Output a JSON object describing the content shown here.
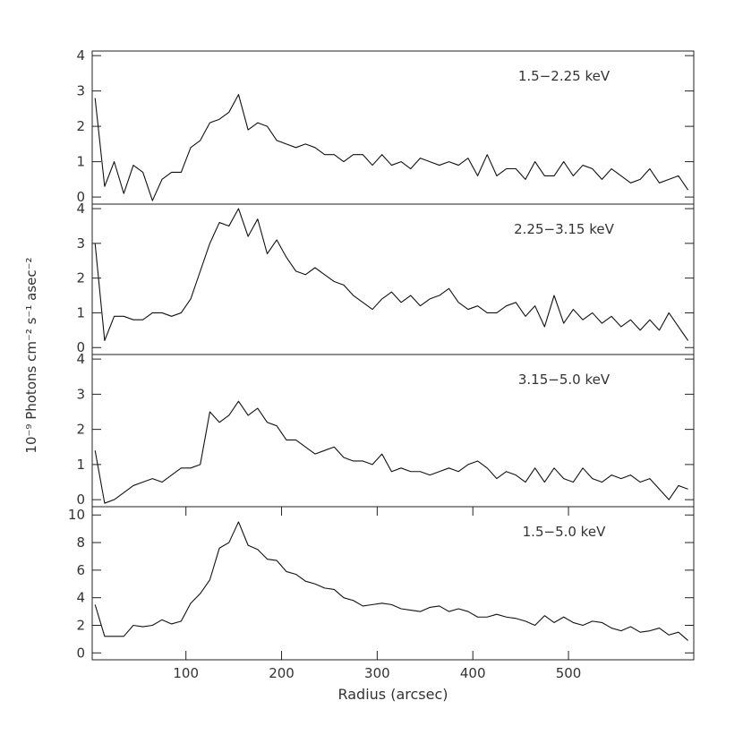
{
  "ylabel": "10⁻⁹ Photons cm⁻² s⁻¹ asec⁻²",
  "chart_data": [
    {
      "type": "line",
      "label": "1.5−2.25 keV",
      "xlim": [
        2,
        631
      ],
      "ylim": [
        -0.2,
        4.13
      ],
      "yticks": [
        0,
        1,
        2,
        3,
        4
      ],
      "x": [
        5,
        15,
        25,
        35,
        45,
        55,
        65,
        75,
        85,
        95,
        105,
        115,
        125,
        135,
        145,
        155,
        165,
        175,
        185,
        195,
        205,
        215,
        225,
        235,
        245,
        255,
        265,
        275,
        285,
        295,
        305,
        315,
        325,
        335,
        345,
        355,
        365,
        375,
        385,
        395,
        405,
        415,
        425,
        435,
        445,
        455,
        465,
        475,
        485,
        495,
        505,
        515,
        525,
        535,
        545,
        555,
        565,
        575,
        585,
        595,
        605,
        615,
        625
      ],
      "series": [
        {
          "color": "#111111",
          "values": [
            2.8,
            0.3,
            1.0,
            0.1,
            0.9,
            0.7,
            -0.1,
            0.5,
            0.7,
            0.7,
            1.4,
            1.6,
            2.1,
            2.2,
            2.4,
            2.9,
            1.9,
            2.1,
            2.0,
            1.6,
            1.5,
            1.4,
            1.5,
            1.4,
            1.2,
            1.2,
            1.0,
            1.2,
            1.2,
            0.9,
            1.2,
            0.9,
            1.0,
            0.8,
            1.1,
            1.0,
            0.9,
            1.0,
            0.9,
            1.1,
            0.6,
            1.2,
            0.6,
            0.8,
            0.8,
            0.5,
            1.0,
            0.6,
            0.6,
            1.0,
            0.6,
            0.9,
            0.8,
            0.5,
            0.8,
            0.6,
            0.4,
            0.5,
            0.8,
            0.4,
            0.5,
            0.6,
            0.2
          ]
        }
      ]
    },
    {
      "type": "line",
      "label": "2.25−3.15 keV",
      "xlim": [
        2,
        631
      ],
      "ylim": [
        -0.2,
        4.13
      ],
      "yticks": [
        0,
        1,
        2,
        3,
        4
      ],
      "x": [
        5,
        15,
        25,
        35,
        45,
        55,
        65,
        75,
        85,
        95,
        105,
        115,
        125,
        135,
        145,
        155,
        165,
        175,
        185,
        195,
        205,
        215,
        225,
        235,
        245,
        255,
        265,
        275,
        285,
        295,
        305,
        315,
        325,
        335,
        345,
        355,
        365,
        375,
        385,
        395,
        405,
        415,
        425,
        435,
        445,
        455,
        465,
        475,
        485,
        495,
        505,
        515,
        525,
        535,
        545,
        555,
        565,
        575,
        585,
        595,
        605,
        615,
        625
      ],
      "series": [
        {
          "color": "#111111",
          "values": [
            3.0,
            0.2,
            0.9,
            0.9,
            0.8,
            0.8,
            1.0,
            1.0,
            0.9,
            1.0,
            1.4,
            2.2,
            3.0,
            3.6,
            3.5,
            4.0,
            3.2,
            3.7,
            2.7,
            3.1,
            2.6,
            2.2,
            2.1,
            2.3,
            2.1,
            1.9,
            1.8,
            1.5,
            1.3,
            1.1,
            1.4,
            1.6,
            1.3,
            1.5,
            1.2,
            1.4,
            1.5,
            1.7,
            1.3,
            1.1,
            1.2,
            1.0,
            1.0,
            1.2,
            1.3,
            0.9,
            1.2,
            0.6,
            1.5,
            0.7,
            1.1,
            0.8,
            1.0,
            0.7,
            0.9,
            0.6,
            0.8,
            0.5,
            0.8,
            0.5,
            1.0,
            0.6,
            0.2
          ]
        }
      ]
    },
    {
      "type": "line",
      "label": "3.15−5.0 keV",
      "xlim": [
        2,
        631
      ],
      "ylim": [
        -0.2,
        4.13
      ],
      "yticks": [
        0,
        1,
        2,
        3,
        4
      ],
      "x": [
        5,
        15,
        25,
        35,
        45,
        55,
        65,
        75,
        85,
        95,
        105,
        115,
        125,
        135,
        145,
        155,
        165,
        175,
        185,
        195,
        205,
        215,
        225,
        235,
        245,
        255,
        265,
        275,
        285,
        295,
        305,
        315,
        325,
        335,
        345,
        355,
        365,
        375,
        385,
        395,
        405,
        415,
        425,
        435,
        445,
        455,
        465,
        475,
        485,
        495,
        505,
        515,
        525,
        535,
        545,
        555,
        565,
        575,
        585,
        595,
        605,
        615,
        625
      ],
      "series": [
        {
          "color": "#111111",
          "values": [
            1.4,
            -0.1,
            0.0,
            0.2,
            0.4,
            0.5,
            0.6,
            0.5,
            0.7,
            0.9,
            0.9,
            1.0,
            2.5,
            2.2,
            2.4,
            2.8,
            2.4,
            2.6,
            2.2,
            2.1,
            1.7,
            1.7,
            1.5,
            1.3,
            1.4,
            1.5,
            1.2,
            1.1,
            1.1,
            1.0,
            1.3,
            0.8,
            0.9,
            0.8,
            0.8,
            0.7,
            0.8,
            0.9,
            0.8,
            1.0,
            1.1,
            0.9,
            0.6,
            0.8,
            0.7,
            0.5,
            0.9,
            0.5,
            0.9,
            0.6,
            0.5,
            0.9,
            0.6,
            0.5,
            0.7,
            0.6,
            0.7,
            0.5,
            0.6,
            0.3,
            0.0,
            0.4,
            0.3
          ]
        }
      ]
    },
    {
      "type": "line",
      "label": "1.5−5.0 keV",
      "xlim": [
        2,
        631
      ],
      "ylim": [
        -0.5,
        10.6
      ],
      "yticks": [
        0,
        2,
        4,
        6,
        8,
        10
      ],
      "xticks": [
        100,
        200,
        300,
        400,
        500
      ],
      "xlabel": "Radius (arcsec)",
      "x": [
        5,
        15,
        25,
        35,
        45,
        55,
        65,
        75,
        85,
        95,
        105,
        115,
        125,
        135,
        145,
        155,
        165,
        175,
        185,
        195,
        205,
        215,
        225,
        235,
        245,
        255,
        265,
        275,
        285,
        295,
        305,
        315,
        325,
        335,
        345,
        355,
        365,
        375,
        385,
        395,
        405,
        415,
        425,
        435,
        445,
        455,
        465,
        475,
        485,
        495,
        505,
        515,
        525,
        535,
        545,
        555,
        565,
        575,
        585,
        595,
        605,
        615,
        625
      ],
      "series": [
        {
          "color": "#111111",
          "values": [
            3.5,
            1.2,
            1.2,
            1.2,
            2.0,
            1.9,
            2.0,
            2.4,
            2.1,
            2.3,
            3.6,
            4.3,
            5.3,
            7.6,
            8.0,
            9.5,
            7.8,
            7.5,
            6.8,
            6.7,
            5.9,
            5.7,
            5.2,
            5.0,
            4.7,
            4.6,
            4.0,
            3.8,
            3.4,
            3.5,
            3.6,
            3.5,
            3.2,
            3.1,
            3.0,
            3.3,
            3.4,
            3.0,
            3.2,
            3.0,
            2.6,
            2.6,
            2.8,
            2.6,
            2.5,
            2.3,
            2.0,
            2.7,
            2.2,
            2.6,
            2.2,
            2.0,
            2.3,
            2.2,
            1.8,
            1.6,
            1.9,
            1.5,
            1.6,
            1.8,
            1.3,
            1.5,
            0.9
          ]
        }
      ]
    }
  ]
}
